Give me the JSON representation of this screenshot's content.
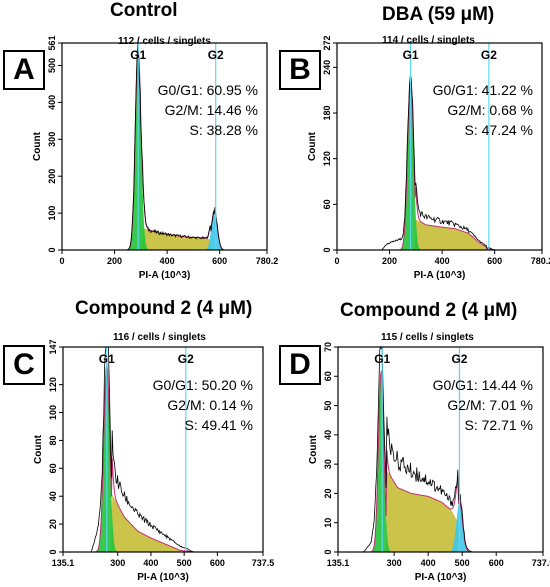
{
  "panels": [
    {
      "letter": "A",
      "title": "Control",
      "subtitle": "112 / cells / singlets",
      "stats": [
        "G0/G1: 60.95 %",
        "G2/M: 14.46 %",
        "S: 38.28 %"
      ]
    },
    {
      "letter": "B",
      "title": "DBA (59 μM)",
      "subtitle": "114 / cells / singlets",
      "stats": [
        "G0/G1: 41.22 %",
        "G2/M:  0.68 %",
        "S: 47.24 %"
      ]
    },
    {
      "letter": "C",
      "title": "Compound  2  (4 μM)",
      "subtitle": "116 / cells / singlets",
      "stats": [
        "G0/G1: 50.20 %",
        "G2/M:  0.14 %",
        "S: 49.41 %"
      ]
    },
    {
      "letter": "D",
      "title": "Compound  2  (4 μM)",
      "subtitle": "115 / cells / singlets",
      "stats": [
        "G0/G1: 14.44 %",
        "G2/M:  7.01 %",
        "S: 72.71 %"
      ]
    }
  ],
  "colors": {
    "g1_fill": "#22c33b",
    "s_fill": "#c8c040",
    "g2_fill": "#3ec6e8",
    "marker_line": "#5ad8f0",
    "histogram_line": "#000000",
    "fit_line": "#c03070"
  },
  "chart_data": [
    {
      "type": "area",
      "panel": "A",
      "xlabel": "PI-A (10^3)",
      "ylabel": "Count",
      "xlim": [
        0,
        780.2
      ],
      "ylim": [
        0,
        561
      ],
      "xticks": [
        "0",
        "200",
        "400",
        "600",
        "780.2"
      ],
      "yticks": [
        "0",
        "100",
        "200",
        "300",
        "400",
        "500",
        "561"
      ],
      "peak_labels": [
        "G1",
        "G2"
      ],
      "g1_marker_x": 290,
      "g2_marker_x": 585,
      "g1": {
        "center": 290,
        "sigma": 11,
        "height": 540
      },
      "g2": {
        "center": 580,
        "sigma": 11,
        "height": 108
      },
      "s_phase": [
        [
          305,
          60
        ],
        [
          360,
          48
        ],
        [
          420,
          40
        ],
        [
          480,
          35
        ],
        [
          540,
          32
        ],
        [
          565,
          28
        ]
      ],
      "histogram_ends": [
        [
          230,
          0
        ],
        [
          620,
          0
        ]
      ]
    },
    {
      "type": "area",
      "panel": "B",
      "xlabel": "PI-A (10^3)",
      "ylabel": "Count",
      "xlim": [
        0,
        780.2
      ],
      "ylim": [
        0,
        272
      ],
      "xticks": [
        "0",
        "200",
        "400",
        "600",
        "780.2"
      ],
      "yticks": [
        "0",
        "60",
        "120",
        "180",
        "240",
        "272"
      ],
      "peak_labels": [
        "G1",
        "G2"
      ],
      "g1_marker_x": 280,
      "g2_marker_x": 578,
      "g1": {
        "center": 280,
        "sigma": 11,
        "height": 230
      },
      "g2": {
        "center": 578,
        "sigma": 9,
        "height": 2
      },
      "s_phase": [
        [
          300,
          40
        ],
        [
          340,
          33
        ],
        [
          400,
          30
        ],
        [
          450,
          28
        ],
        [
          500,
          22
        ],
        [
          540,
          10
        ],
        [
          570,
          3
        ]
      ],
      "histogram_ends": [
        [
          170,
          0
        ],
        [
          190,
          8
        ],
        [
          240,
          14
        ],
        [
          600,
          0
        ]
      ]
    },
    {
      "type": "area",
      "panel": "C",
      "xlabel": "PI-A (10^3)",
      "ylabel": "Count",
      "xlim": [
        135.1,
        737.5
      ],
      "ylim": [
        0,
        147
      ],
      "xticks": [
        "135.1",
        "300",
        "400",
        "500",
        "600",
        "737.5"
      ],
      "yticks": [
        "0",
        "20",
        "40",
        "60",
        "80",
        "100",
        "120",
        "147"
      ],
      "peak_labels": [
        "G1",
        "G2"
      ],
      "g1_marker_x": 267,
      "g2_marker_x": 505,
      "g1": {
        "center": 267,
        "sigma": 9,
        "height": 135
      },
      "g2": {
        "center": 505,
        "sigma": 8,
        "height": 1
      },
      "s_phase": [
        [
          282,
          42
        ],
        [
          320,
          25
        ],
        [
          360,
          15
        ],
        [
          400,
          10
        ],
        [
          440,
          6
        ],
        [
          480,
          2
        ],
        [
          500,
          0
        ]
      ],
      "histogram_ends": [
        [
          220,
          0
        ],
        [
          245,
          20
        ],
        [
          530,
          0
        ]
      ]
    },
    {
      "type": "area",
      "panel": "D",
      "xlabel": "PI-A (10^3)",
      "ylabel": "Count",
      "xlim": [
        135.1,
        737.5
      ],
      "ylim": [
        0,
        70
      ],
      "xticks": [
        "135.1",
        "300",
        "400",
        "500",
        "600",
        "737.5"
      ],
      "yticks": [
        "0",
        "10",
        "20",
        "30",
        "40",
        "50",
        "60",
        "70"
      ],
      "peak_labels": [
        "G1",
        "G2"
      ],
      "g1_marker_x": 265,
      "g2_marker_x": 492,
      "g1": {
        "center": 262,
        "sigma": 8,
        "height": 62
      },
      "g2": {
        "center": 492,
        "sigma": 9,
        "height": 17
      },
      "s_phase": [
        [
          278,
          28
        ],
        [
          310,
          22
        ],
        [
          350,
          20
        ],
        [
          400,
          19
        ],
        [
          440,
          17
        ],
        [
          470,
          14
        ],
        [
          488,
          10
        ]
      ],
      "histogram_ends": [
        [
          210,
          0
        ],
        [
          232,
          3
        ],
        [
          245,
          12
        ],
        [
          530,
          0
        ]
      ]
    }
  ]
}
